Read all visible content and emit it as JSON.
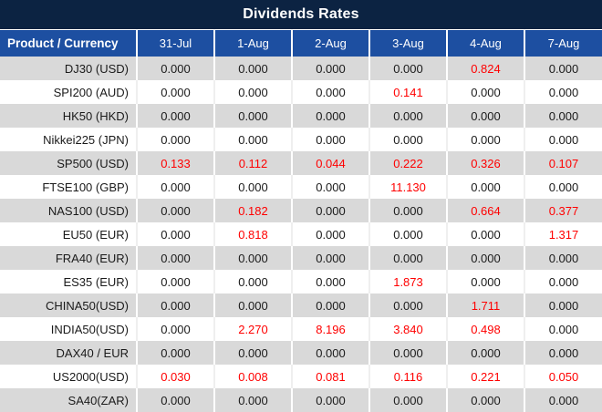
{
  "title": "Dividends Rates",
  "zero_value": "0.000",
  "colors": {
    "title_bg": "#0c2342",
    "header_bg": "#1d4fa1",
    "header_text": "#ffffff",
    "row_alt_bg": "#d9d9d9",
    "row_bg": "#ffffff",
    "value_text": "#1a1a1a",
    "value_red": "#ff0000",
    "separator": "#ffffff"
  },
  "table": {
    "header": [
      "Product / Currency",
      "31-Jul",
      "1-Aug",
      "2-Aug",
      "3-Aug",
      "4-Aug",
      "7-Aug"
    ],
    "rows": [
      {
        "product": "DJ30 (USD)",
        "values": [
          "0.000",
          "0.000",
          "0.000",
          "0.000",
          "0.824",
          "0.000"
        ]
      },
      {
        "product": "SPI200 (AUD)",
        "values": [
          "0.000",
          "0.000",
          "0.000",
          "0.141",
          "0.000",
          "0.000"
        ]
      },
      {
        "product": "HK50 (HKD)",
        "values": [
          "0.000",
          "0.000",
          "0.000",
          "0.000",
          "0.000",
          "0.000"
        ]
      },
      {
        "product": "Nikkei225 (JPN)",
        "values": [
          "0.000",
          "0.000",
          "0.000",
          "0.000",
          "0.000",
          "0.000"
        ]
      },
      {
        "product": "SP500 (USD)",
        "values": [
          "0.133",
          "0.112",
          "0.044",
          "0.222",
          "0.326",
          "0.107"
        ]
      },
      {
        "product": "FTSE100 (GBP)",
        "values": [
          "0.000",
          "0.000",
          "0.000",
          "11.130",
          "0.000",
          "0.000"
        ]
      },
      {
        "product": "NAS100 (USD)",
        "values": [
          "0.000",
          "0.182",
          "0.000",
          "0.000",
          "0.664",
          "0.377"
        ]
      },
      {
        "product": "EU50 (EUR)",
        "values": [
          "0.000",
          "0.818",
          "0.000",
          "0.000",
          "0.000",
          "1.317"
        ]
      },
      {
        "product": "FRA40 (EUR)",
        "values": [
          "0.000",
          "0.000",
          "0.000",
          "0.000",
          "0.000",
          "0.000"
        ]
      },
      {
        "product": "ES35 (EUR)",
        "values": [
          "0.000",
          "0.000",
          "0.000",
          "1.873",
          "0.000",
          "0.000"
        ]
      },
      {
        "product": "CHINA50(USD)",
        "values": [
          "0.000",
          "0.000",
          "0.000",
          "0.000",
          "1.711",
          "0.000"
        ]
      },
      {
        "product": "INDIA50(USD)",
        "values": [
          "0.000",
          "2.270",
          "8.196",
          "3.840",
          "0.498",
          "0.000"
        ]
      },
      {
        "product": "DAX40 / EUR",
        "values": [
          "0.000",
          "0.000",
          "0.000",
          "0.000",
          "0.000",
          "0.000"
        ]
      },
      {
        "product": "US2000(USD)",
        "values": [
          "0.030",
          "0.008",
          "0.081",
          "0.116",
          "0.221",
          "0.050"
        ]
      },
      {
        "product": "SA40(ZAR)",
        "values": [
          "0.000",
          "0.000",
          "0.000",
          "0.000",
          "0.000",
          "0.000"
        ]
      }
    ]
  }
}
